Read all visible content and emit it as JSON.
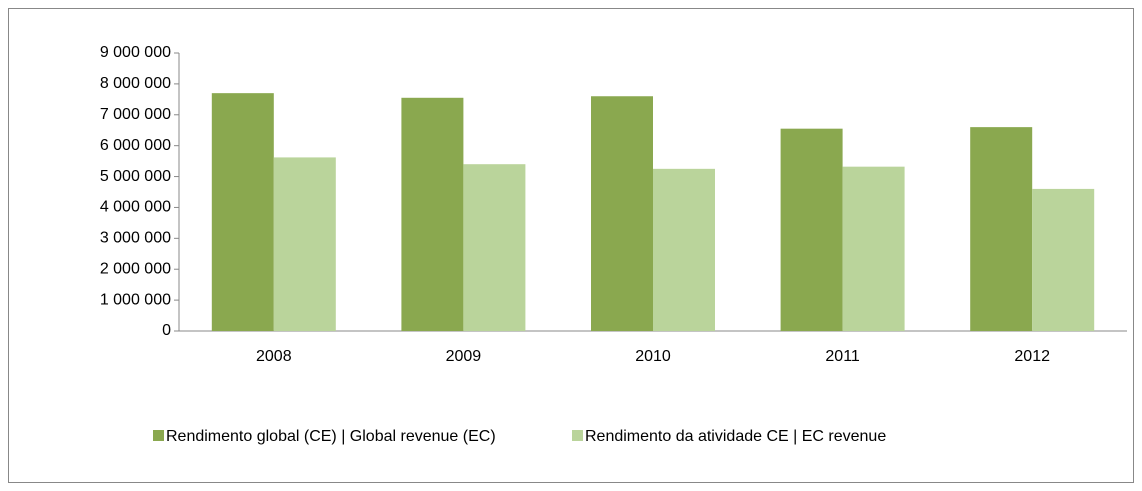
{
  "chart_data": {
    "type": "bar",
    "categories": [
      "2008",
      "2009",
      "2010",
      "2011",
      "2012"
    ],
    "series": [
      {
        "name": "Rendimento global (CE) | Global revenue (EC)",
        "color": "#8aa84f",
        "values": [
          7700000,
          7550000,
          7600000,
          6550000,
          6600000
        ]
      },
      {
        "name": "Rendimento da atividade CE | EC revenue",
        "color": "#bad49b",
        "values": [
          5620000,
          5400000,
          5250000,
          5320000,
          4600000
        ]
      }
    ],
    "ylim": [
      0,
      9000000
    ],
    "yticks": [
      0,
      {
        "value": 1000000,
        "label": "1 000 000"
      },
      {
        "value": 2000000,
        "label": "2 000 000"
      },
      {
        "value": 3000000,
        "label": "3 000 000"
      },
      {
        "value": 4000000,
        "label": "4 000 000"
      },
      {
        "value": 5000000,
        "label": "5 000 000"
      },
      {
        "value": 6000000,
        "label": "6 000 000"
      },
      {
        "value": 7000000,
        "label": "7 000 000"
      },
      {
        "value": 8000000,
        "label": "8 000 000"
      },
      {
        "value": 9000000,
        "label": "9 000 000"
      }
    ],
    "grid": false,
    "legend": "bottom"
  }
}
